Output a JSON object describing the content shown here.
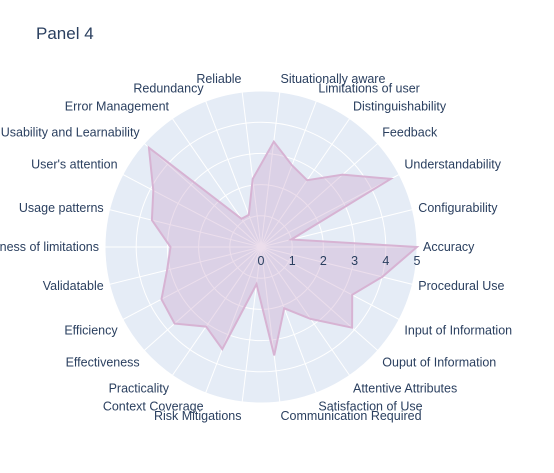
{
  "chart_data": {
    "type": "radar",
    "title": "Panel 4",
    "categories": [
      "Accuracy",
      "Configurability",
      "Understandability",
      "Feedback",
      "Distinguishability",
      "Limitations of user",
      "Situationally aware",
      "Reliable",
      "Redundancy",
      "Error Management",
      "Usability and Learnability",
      "User's attention",
      "Usage patterns",
      "Awareness of limitations",
      "Validatable",
      "Efficiency",
      "Effectiveness",
      "Practicality",
      "Context Coverage",
      "Risk Mitigations",
      "Communication Required",
      "Satisfaction of Use",
      "Attentive Attributes",
      "Ouput of Information",
      "Input of Information",
      "Procedural Use"
    ],
    "series": [
      {
        "values": [
          5,
          1,
          4.7,
          3.5,
          2.6,
          2.8,
          3.4,
          2.2,
          1.1,
          1.1,
          4.8,
          3.9,
          3.6,
          2.9,
          3.1,
          3.6,
          3.7,
          3.1,
          3.5,
          1.2,
          3.5,
          2.1,
          2.8,
          3.9,
          3.3,
          4
        ]
      }
    ],
    "radial_axis": {
      "range": [
        0,
        5
      ],
      "ticks": [
        "0",
        "1",
        "2",
        "3",
        "4",
        "5"
      ]
    },
    "colors": {
      "fill": "rgba(200,160,200,0.35)",
      "line": "#d7b3d3",
      "background": "#e5ecf6",
      "grid": "#ffffff",
      "text": "#2a3f5f"
    }
  }
}
